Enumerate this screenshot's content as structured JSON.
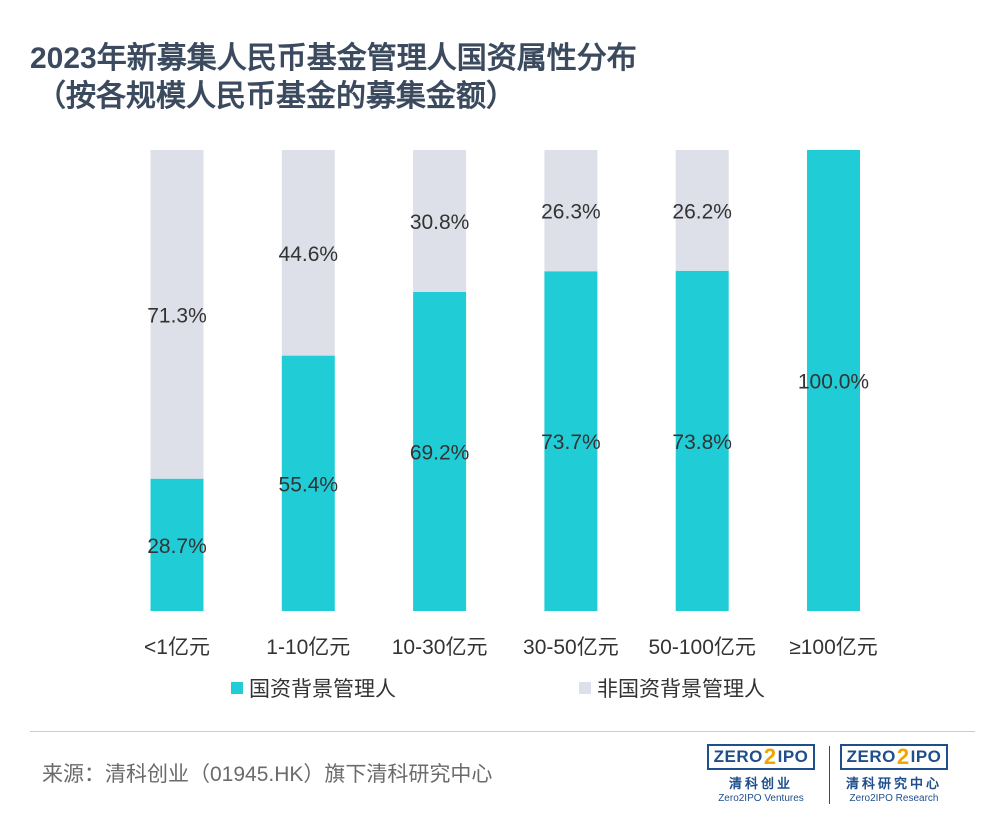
{
  "title_line1": "2023年新募集人民币基金管理人国资属性分布",
  "title_line2": "（按各规模人民币基金的募集金额）",
  "legend": [
    {
      "label": "国资背景管理人",
      "color": "#20ccd6"
    },
    {
      "label": "非国资背景管理人",
      "color": "#dde0e8"
    }
  ],
  "source": "来源：清科创业（01945.HK）旗下清科研究中心",
  "logos": [
    {
      "mark_left": "ZERO",
      "mark_two": "2",
      "mark_right": "IPO",
      "cn": "清科创业",
      "en": "Zero2IPO Ventures"
    },
    {
      "mark_left": "ZERO",
      "mark_two": "2",
      "mark_right": "IPO",
      "cn": "清科研究中心",
      "en": "Zero2IPO Research"
    }
  ],
  "chart_data": {
    "type": "bar",
    "stacked": true,
    "percent": true,
    "categories": [
      "<1亿元",
      "1-10亿元",
      "10-30亿元",
      "30-50亿元",
      "50-100亿元",
      "≥100亿元"
    ],
    "series": [
      {
        "name": "国资背景管理人",
        "color": "#20ccd6",
        "values": [
          28.7,
          55.4,
          69.2,
          73.7,
          73.8,
          100.0
        ]
      },
      {
        "name": "非国资背景管理人",
        "color": "#dde0e8",
        "values": [
          71.3,
          44.6,
          30.8,
          26.3,
          26.2,
          0
        ]
      }
    ],
    "label_format": "one decimal followed by %",
    "ylim": [
      0,
      100
    ]
  }
}
